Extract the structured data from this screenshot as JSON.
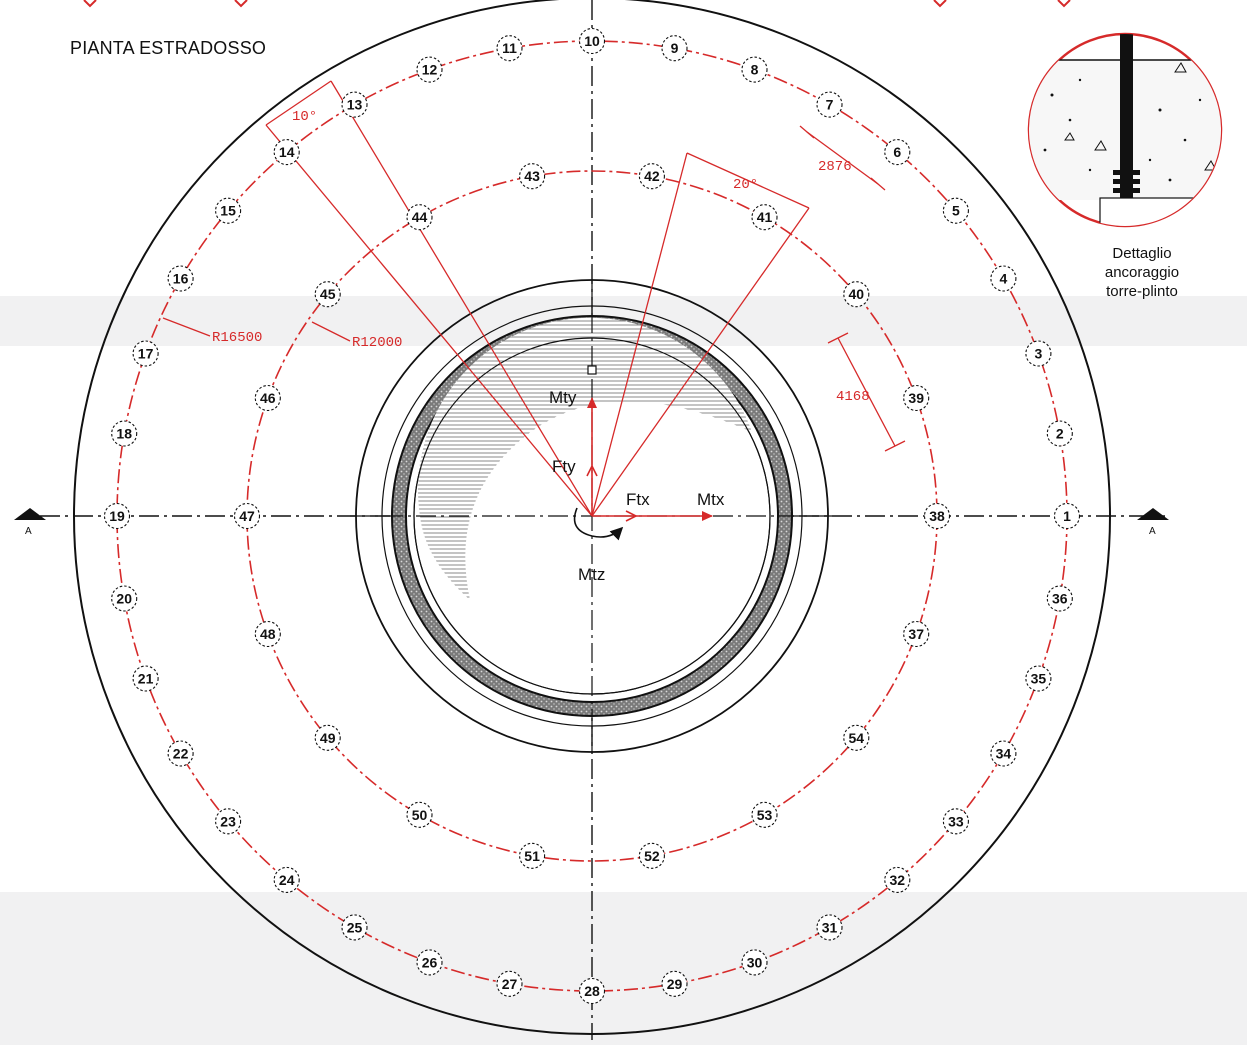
{
  "title": "PIANTA ESTRADOSSO",
  "detail": {
    "line1": "Dettaglio",
    "line2": "ancoraggio",
    "line3": "torre-plinto"
  },
  "dimensions": {
    "outer_radius": "R16500",
    "inner_radius": "R12000",
    "outer_spacing": "2876",
    "inner_spacing": "4168",
    "outer_angle": "10°",
    "inner_angle": "20°"
  },
  "loads": {
    "moment_y": "Mty",
    "force_y": "Fty",
    "force_x": "Ftx",
    "moment_x": "Mtx",
    "moment_z": "Mtz"
  },
  "section_mark": "A",
  "outer_piles": {
    "count": 36,
    "first_label": 1,
    "angular_step_deg": 10,
    "direction": "counterclockwise from east"
  },
  "inner_piles": {
    "count": 18,
    "first_label": 37,
    "angular_step_deg": 20,
    "start_angle_deg": -20,
    "direction": "counterclockwise"
  },
  "colors": {
    "pile_lines": "#d62a2a",
    "structure": "#111111",
    "background_bands": "#f1f1f2"
  }
}
